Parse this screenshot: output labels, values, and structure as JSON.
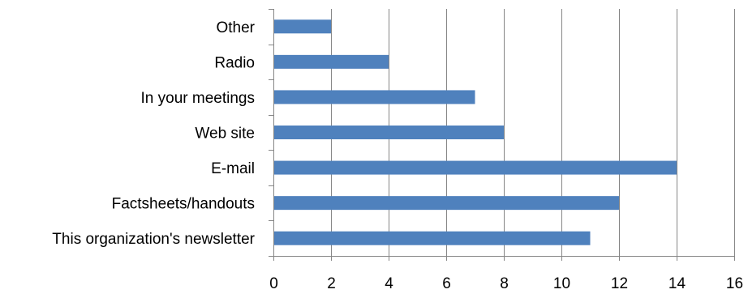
{
  "chart_data": {
    "type": "bar",
    "orientation": "horizontal",
    "categories": [
      "Other",
      "Radio",
      "In your meetings",
      "Web site",
      "E-mail",
      "Factsheets/handouts",
      "This organization's newsletter"
    ],
    "values": [
      2,
      4,
      7,
      8,
      14,
      12,
      11
    ],
    "xlim": [
      0,
      16
    ],
    "xticks": [
      "0",
      "2",
      "4",
      "6",
      "8",
      "10",
      "12",
      "14",
      "16"
    ],
    "grid": "vertical",
    "legend": "none",
    "bar_color": "#4F81BD",
    "grid_color": "#868686"
  }
}
